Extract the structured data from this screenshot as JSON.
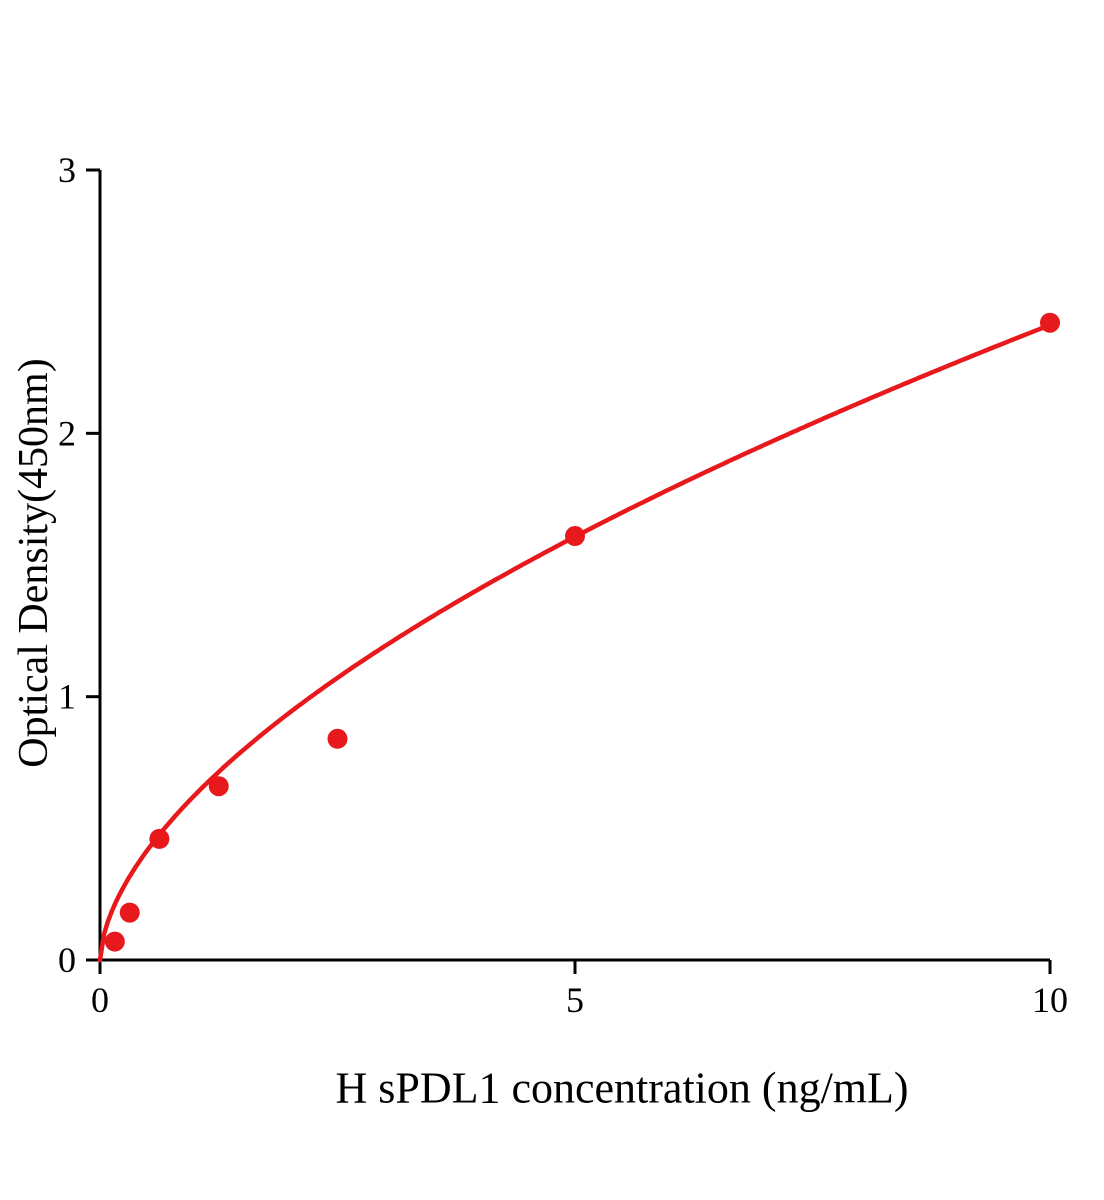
{
  "chart_data": {
    "type": "scatter",
    "title": "",
    "xlabel": "H sPDL1 concentration (ng/mL)",
    "ylabel": "Optical Density(450nm)",
    "x": [
      0.156,
      0.313,
      0.625,
      1.25,
      2.5,
      5,
      10
    ],
    "y": [
      0.07,
      0.18,
      0.46,
      0.66,
      0.84,
      1.61,
      2.42
    ],
    "xlim": [
      0,
      10
    ],
    "ylim": [
      0,
      3
    ],
    "xticks": [
      0,
      5,
      10
    ],
    "yticks": [
      0,
      1,
      2,
      3
    ],
    "fit": {
      "type": "power",
      "a": 0.627,
      "b": 0.585
    },
    "point_color": "#e8191c",
    "curve_color": "#e8191c",
    "axis_color": "#000000",
    "grid": false,
    "legend": null
  }
}
